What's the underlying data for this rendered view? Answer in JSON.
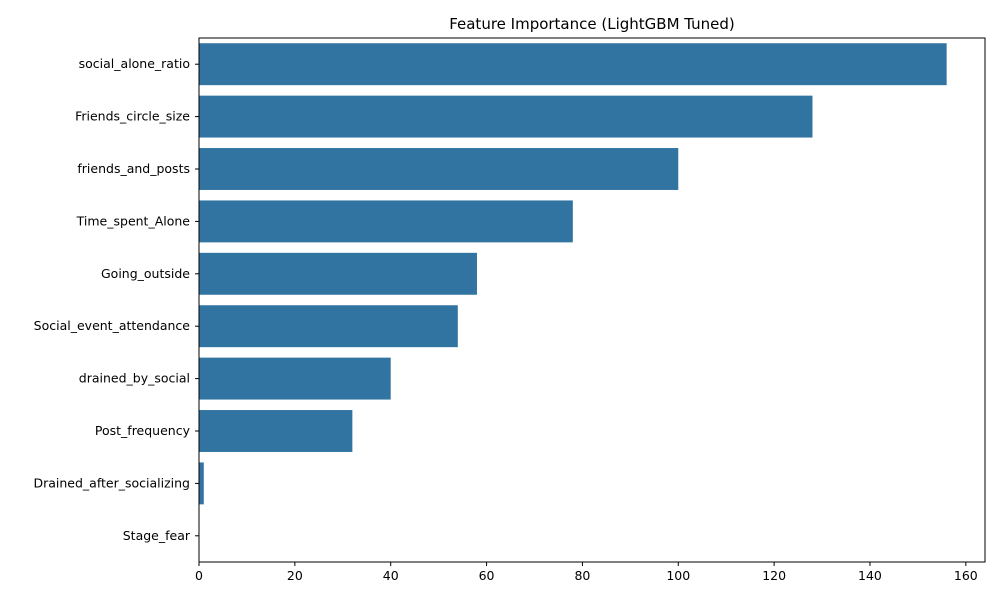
{
  "chart_data": {
    "type": "bar",
    "orientation": "horizontal",
    "title": "Feature Importance (LightGBM Tuned)",
    "xlabel": "",
    "ylabel": "",
    "categories": [
      "social_alone_ratio",
      "Friends_circle_size",
      "friends_and_posts",
      "Time_spent_Alone",
      "Going_outside",
      "Social_event_attendance",
      "drained_by_social",
      "Post_frequency",
      "Drained_after_socializing",
      "Stage_fear"
    ],
    "values": [
      156,
      128,
      100,
      78,
      58,
      54,
      40,
      32,
      1,
      0
    ],
    "xlim": [
      0,
      164
    ],
    "xticks": [
      0,
      20,
      40,
      60,
      80,
      100,
      120,
      140,
      160
    ],
    "grid": false,
    "legend": "none",
    "bar_color": "#3274a1"
  }
}
